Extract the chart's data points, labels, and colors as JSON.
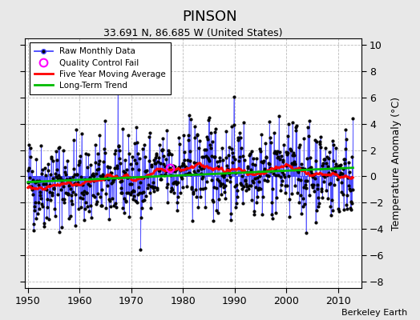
{
  "title": "PINSON",
  "subtitle": "33.691 N, 86.685 W (United States)",
  "ylabel": "Temperature Anomaly (°C)",
  "credit": "Berkeley Earth",
  "xlim": [
    1949.5,
    2014.5
  ],
  "ylim": [
    -8.5,
    10.5
  ],
  "yticks": [
    -8,
    -6,
    -4,
    -2,
    0,
    2,
    4,
    6,
    8,
    10
  ],
  "xticks": [
    1950,
    1960,
    1970,
    1980,
    1990,
    2000,
    2010
  ],
  "raw_line_color": "#4444ff",
  "raw_fill_color": "#aaaaff",
  "dot_color": "#000000",
  "moving_avg_color": "#ff0000",
  "trend_color": "#00bb00",
  "qc_color": "#ff00ff",
  "background_color": "#e8e8e8",
  "plot_bg_color": "#ffffff",
  "seed": 42,
  "n_months": 756,
  "start_year": 1950,
  "qc_fail_year": 1977.5,
  "qc_fail_val": 1.8
}
